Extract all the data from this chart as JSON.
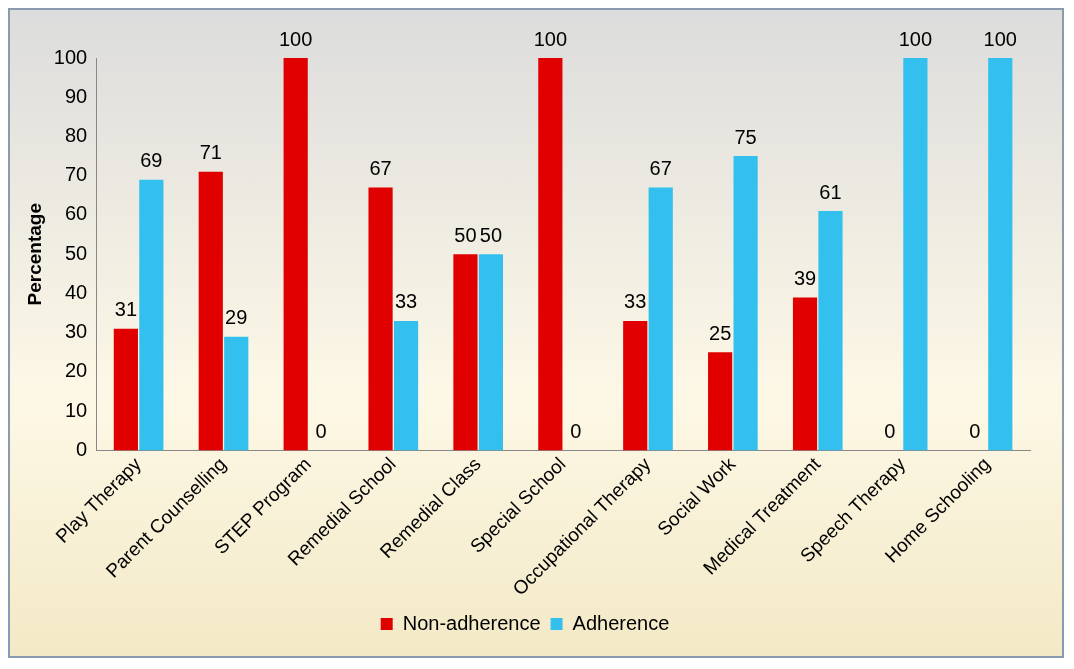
{
  "chart_data": {
    "type": "bar",
    "ylabel": "Percentage",
    "categories": [
      "Play Therapy",
      "Parent Counselling",
      "STEP Program",
      "Remedial School",
      "Remedial Class",
      "Special School",
      "Occupational Therapy",
      "Social Work",
      "Medical Treatment",
      "Speech Therapy",
      "Home Schooling"
    ],
    "series": [
      {
        "name": "Non-adherence",
        "color": "#e00000",
        "values": [
          31,
          71,
          100,
          67,
          50,
          100,
          33,
          25,
          39,
          0,
          0
        ]
      },
      {
        "name": "Adherence",
        "color": "#33c0ee",
        "values": [
          69,
          29,
          0,
          33,
          50,
          0,
          67,
          75,
          61,
          100,
          100
        ]
      }
    ],
    "ylim": [
      0,
      100
    ],
    "yticks": [
      0,
      10,
      20,
      30,
      40,
      50,
      60,
      70,
      80,
      90,
      100
    ],
    "grid": false,
    "legend": "bottom",
    "data_labels": true
  }
}
